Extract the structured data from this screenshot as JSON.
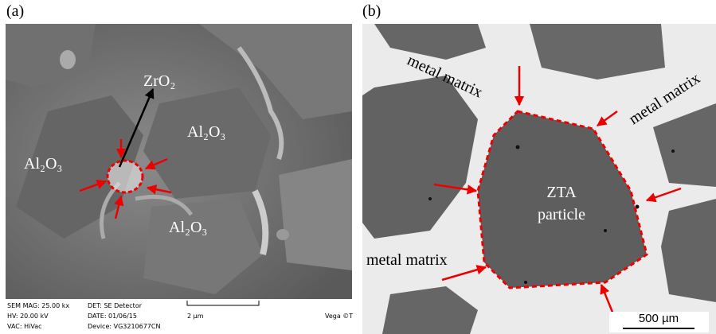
{
  "panels": [
    {
      "label": "(a)",
      "annotations": [
        "ZrO₂",
        "Al₂O₃",
        "Al₂O₃",
        "Al₂O₃"
      ],
      "info_bar": [
        "SEM MAG: 25.00 kx",
        "DET: SE Detector",
        "HV: 20.00 kV",
        "DATE: 01/06/15",
        "VAC: HiVac",
        "Device: VG3210677CN"
      ],
      "scale_bar": "2 µm",
      "watermark": "Vega ©T"
    },
    {
      "label": "(b)",
      "annotations": [
        "metal matrix",
        "metal matrix",
        "metal matrix",
        "ZTA",
        "particle"
      ],
      "scale_bar": "500 µm"
    }
  ]
}
